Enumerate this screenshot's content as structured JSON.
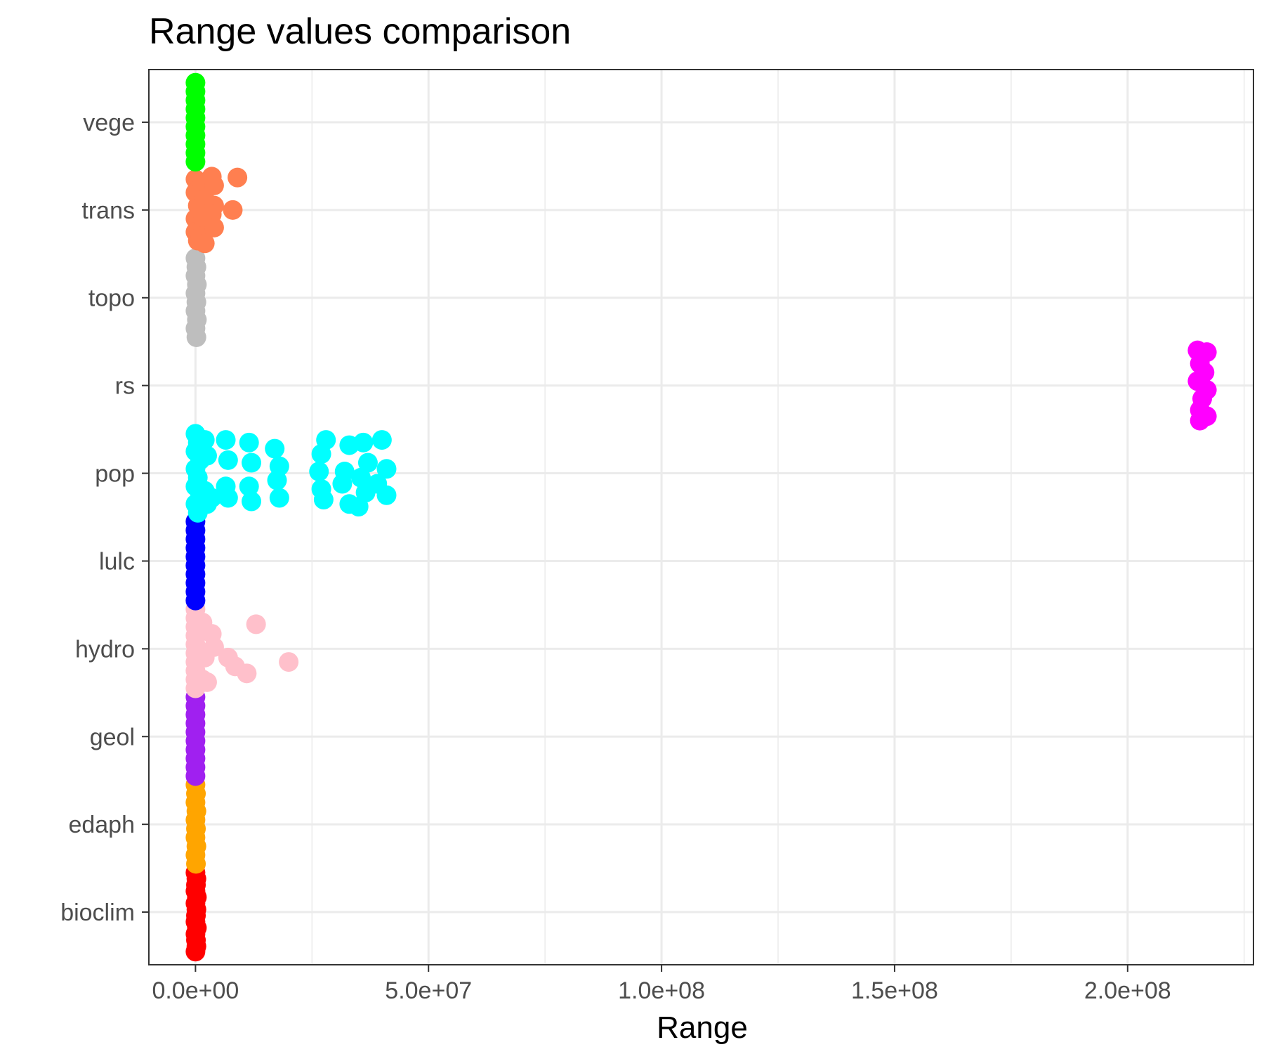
{
  "chart_data": {
    "type": "scatter",
    "title": "Range values comparison",
    "xlabel": "Range",
    "ylabel": "",
    "xlim": [
      -10000000,
      227000000
    ],
    "x_ticks": [
      {
        "value": 0,
        "label": "0.0e+00"
      },
      {
        "value": 50000000,
        "label": "5.0e+07"
      },
      {
        "value": 100000000,
        "label": "1.0e+08"
      },
      {
        "value": 150000000,
        "label": "1.5e+08"
      },
      {
        "value": 200000000,
        "label": "2.0e+08"
      }
    ],
    "categories": [
      "bioclim",
      "edaph",
      "geol",
      "hydro",
      "lulc",
      "pop",
      "rs",
      "topo",
      "trans",
      "vege"
    ],
    "grid": true,
    "legend": "none",
    "series": [
      {
        "category": "bioclim",
        "color": "#FF0000",
        "points": [
          {
            "x": 0,
            "y": 0.45
          },
          {
            "x": 200000,
            "y": 0.38
          },
          {
            "x": 100000,
            "y": 0.31
          },
          {
            "x": 0,
            "y": 0.24
          },
          {
            "x": 300000,
            "y": 0.17
          },
          {
            "x": 0,
            "y": 0.1
          },
          {
            "x": 200000,
            "y": 0.03
          },
          {
            "x": 100000,
            "y": -0.04
          },
          {
            "x": 0,
            "y": -0.11
          },
          {
            "x": 300000,
            "y": -0.18
          },
          {
            "x": 0,
            "y": -0.25
          },
          {
            "x": 100000,
            "y": -0.32
          },
          {
            "x": 200000,
            "y": -0.39
          },
          {
            "x": 0,
            "y": -0.45
          }
        ]
      },
      {
        "category": "edaph",
        "color": "#FFA500",
        "points": [
          {
            "x": 0,
            "y": 0.45
          },
          {
            "x": 100000,
            "y": 0.35
          },
          {
            "x": 0,
            "y": 0.25
          },
          {
            "x": 200000,
            "y": 0.15
          },
          {
            "x": 0,
            "y": 0.05
          },
          {
            "x": 100000,
            "y": -0.05
          },
          {
            "x": 0,
            "y": -0.15
          },
          {
            "x": 200000,
            "y": -0.25
          },
          {
            "x": 0,
            "y": -0.35
          },
          {
            "x": 100000,
            "y": -0.45
          }
        ]
      },
      {
        "category": "geol",
        "color": "#A020F0",
        "points": [
          {
            "x": 0,
            "y": 0.45
          },
          {
            "x": 0,
            "y": 0.35
          },
          {
            "x": 0,
            "y": 0.25
          },
          {
            "x": 0,
            "y": 0.15
          },
          {
            "x": 0,
            "y": 0.05
          },
          {
            "x": 0,
            "y": -0.05
          },
          {
            "x": 0,
            "y": -0.15
          },
          {
            "x": 0,
            "y": -0.25
          },
          {
            "x": 0,
            "y": -0.35
          },
          {
            "x": 0,
            "y": -0.45
          }
        ]
      },
      {
        "category": "hydro",
        "color": "#FFC0CB",
        "points": [
          {
            "x": 0,
            "y": 0.45
          },
          {
            "x": 0,
            "y": 0.35
          },
          {
            "x": 0,
            "y": 0.25
          },
          {
            "x": 0,
            "y": 0.15
          },
          {
            "x": 0,
            "y": 0.05
          },
          {
            "x": 0,
            "y": -0.05
          },
          {
            "x": 0,
            "y": -0.15
          },
          {
            "x": 0,
            "y": -0.25
          },
          {
            "x": 0,
            "y": -0.35
          },
          {
            "x": 0,
            "y": -0.45
          },
          {
            "x": 1500000,
            "y": 0.3
          },
          {
            "x": 3500000,
            "y": 0.17
          },
          {
            "x": 4000000,
            "y": 0.02
          },
          {
            "x": 2000000,
            "y": -0.1
          },
          {
            "x": 1500000,
            "y": -0.35
          },
          {
            "x": 2500000,
            "y": -0.38
          },
          {
            "x": 13000000,
            "y": 0.28
          },
          {
            "x": 7000000,
            "y": -0.1
          },
          {
            "x": 8500000,
            "y": -0.2
          },
          {
            "x": 11000000,
            "y": -0.28
          },
          {
            "x": 20000000,
            "y": -0.15
          }
        ]
      },
      {
        "category": "lulc",
        "color": "#0000FF",
        "points": [
          {
            "x": 0,
            "y": 0.45
          },
          {
            "x": 0,
            "y": 0.35
          },
          {
            "x": 0,
            "y": 0.25
          },
          {
            "x": 0,
            "y": 0.15
          },
          {
            "x": 0,
            "y": 0.05
          },
          {
            "x": 0,
            "y": -0.05
          },
          {
            "x": 0,
            "y": -0.15
          },
          {
            "x": 0,
            "y": -0.25
          },
          {
            "x": 0,
            "y": -0.35
          },
          {
            "x": 0,
            "y": -0.45
          }
        ]
      },
      {
        "category": "pop",
        "color": "#00FFFF",
        "points": [
          {
            "x": 0,
            "y": 0.45
          },
          {
            "x": 500000,
            "y": 0.35
          },
          {
            "x": 0,
            "y": 0.25
          },
          {
            "x": 1000000,
            "y": 0.15
          },
          {
            "x": 0,
            "y": 0.05
          },
          {
            "x": 500000,
            "y": -0.05
          },
          {
            "x": 0,
            "y": -0.15
          },
          {
            "x": 1000000,
            "y": -0.25
          },
          {
            "x": 0,
            "y": -0.35
          },
          {
            "x": 500000,
            "y": -0.45
          },
          {
            "x": 2000000,
            "y": 0.38
          },
          {
            "x": 2500000,
            "y": 0.2
          },
          {
            "x": 2000000,
            "y": -0.2
          },
          {
            "x": 2500000,
            "y": -0.35
          },
          {
            "x": 3500000,
            "y": -0.28
          },
          {
            "x": 6500000,
            "y": 0.38
          },
          {
            "x": 7000000,
            "y": 0.15
          },
          {
            "x": 6500000,
            "y": -0.15
          },
          {
            "x": 7000000,
            "y": -0.28
          },
          {
            "x": 11500000,
            "y": 0.35
          },
          {
            "x": 12000000,
            "y": 0.12
          },
          {
            "x": 11500000,
            "y": -0.15
          },
          {
            "x": 12000000,
            "y": -0.32
          },
          {
            "x": 17000000,
            "y": 0.28
          },
          {
            "x": 18000000,
            "y": 0.08
          },
          {
            "x": 17500000,
            "y": -0.08
          },
          {
            "x": 18000000,
            "y": -0.28
          },
          {
            "x": 28000000,
            "y": 0.38
          },
          {
            "x": 27000000,
            "y": 0.22
          },
          {
            "x": 26500000,
            "y": 0.02
          },
          {
            "x": 27000000,
            "y": -0.18
          },
          {
            "x": 27500000,
            "y": -0.3
          },
          {
            "x": 33000000,
            "y": 0.32
          },
          {
            "x": 32000000,
            "y": 0.02
          },
          {
            "x": 31500000,
            "y": -0.12
          },
          {
            "x": 33000000,
            "y": -0.35
          },
          {
            "x": 36000000,
            "y": 0.35
          },
          {
            "x": 37000000,
            "y": 0.12
          },
          {
            "x": 35500000,
            "y": -0.05
          },
          {
            "x": 36500000,
            "y": -0.22
          },
          {
            "x": 35000000,
            "y": -0.38
          },
          {
            "x": 40000000,
            "y": 0.38
          },
          {
            "x": 41000000,
            "y": 0.05
          },
          {
            "x": 39000000,
            "y": -0.12
          },
          {
            "x": 41000000,
            "y": -0.25
          }
        ]
      },
      {
        "category": "rs",
        "color": "#FF00FF",
        "points": [
          {
            "x": 215000000,
            "y": 0.4
          },
          {
            "x": 217000000,
            "y": 0.38
          },
          {
            "x": 215500000,
            "y": 0.25
          },
          {
            "x": 216500000,
            "y": 0.15
          },
          {
            "x": 215000000,
            "y": 0.05
          },
          {
            "x": 217000000,
            "y": -0.05
          },
          {
            "x": 216000000,
            "y": -0.15
          },
          {
            "x": 215500000,
            "y": -0.28
          },
          {
            "x": 217000000,
            "y": -0.35
          },
          {
            "x": 215500000,
            "y": -0.4
          }
        ]
      },
      {
        "category": "topo",
        "color": "#BEBEBE",
        "points": [
          {
            "x": 0,
            "y": 0.45
          },
          {
            "x": 200000,
            "y": 0.35
          },
          {
            "x": 0,
            "y": 0.25
          },
          {
            "x": 300000,
            "y": 0.15
          },
          {
            "x": 0,
            "y": 0.05
          },
          {
            "x": 200000,
            "y": -0.05
          },
          {
            "x": 0,
            "y": -0.15
          },
          {
            "x": 300000,
            "y": -0.25
          },
          {
            "x": 0,
            "y": -0.35
          },
          {
            "x": 200000,
            "y": -0.45
          }
        ]
      },
      {
        "category": "trans",
        "color": "#FF7F50",
        "points": [
          {
            "x": 0,
            "y": 0.35
          },
          {
            "x": 0,
            "y": 0.2
          },
          {
            "x": 500000,
            "y": 0.05
          },
          {
            "x": 0,
            "y": -0.1
          },
          {
            "x": 0,
            "y": -0.25
          },
          {
            "x": 500000,
            "y": -0.35
          },
          {
            "x": 1500000,
            "y": 0.3
          },
          {
            "x": 2000000,
            "y": 0.12
          },
          {
            "x": 1000000,
            "y": 0.0
          },
          {
            "x": 2000000,
            "y": -0.15
          },
          {
            "x": 1000000,
            "y": -0.3
          },
          {
            "x": 2000000,
            "y": -0.38
          },
          {
            "x": 3500000,
            "y": 0.38
          },
          {
            "x": 4000000,
            "y": 0.28
          },
          {
            "x": 4000000,
            "y": 0.05
          },
          {
            "x": 3500000,
            "y": -0.05
          },
          {
            "x": 4000000,
            "y": -0.2
          },
          {
            "x": 9000000,
            "y": 0.37
          },
          {
            "x": 8000000,
            "y": 0.0
          }
        ]
      },
      {
        "category": "vege",
        "color": "#00FF00",
        "points": [
          {
            "x": 0,
            "y": 0.45
          },
          {
            "x": 0,
            "y": 0.35
          },
          {
            "x": 0,
            "y": 0.25
          },
          {
            "x": 0,
            "y": 0.15
          },
          {
            "x": 0,
            "y": 0.05
          },
          {
            "x": 0,
            "y": -0.05
          },
          {
            "x": 0,
            "y": -0.15
          },
          {
            "x": 0,
            "y": -0.25
          },
          {
            "x": 0,
            "y": -0.35
          },
          {
            "x": 0,
            "y": -0.45
          }
        ]
      }
    ]
  }
}
